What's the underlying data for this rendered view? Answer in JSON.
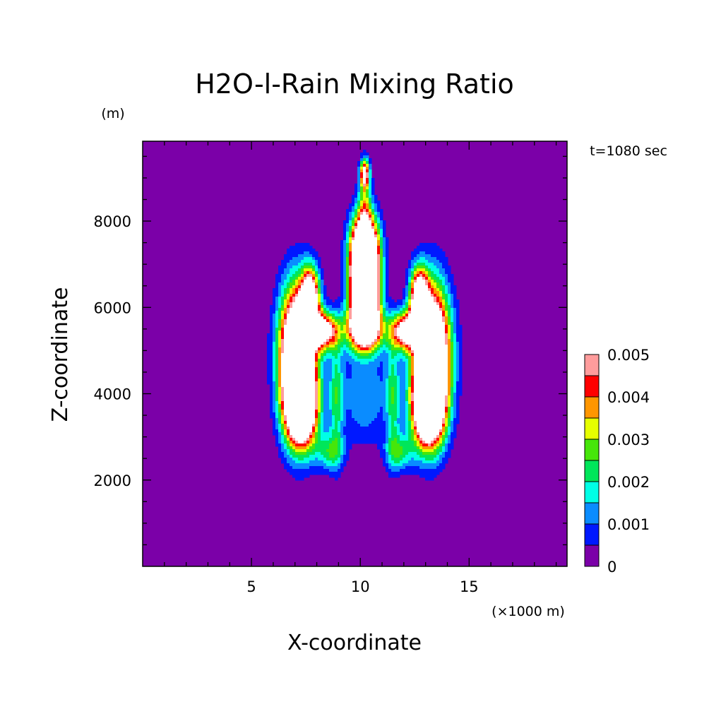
{
  "chart_data": {
    "type": "heatmap",
    "title": "H2O-l-Rain Mixing Ratio",
    "xlabel": "X-coordinate",
    "ylabel": "Z-coordinate",
    "x_unit": "(×1000 m)",
    "y_unit": "(m)",
    "time_label": "t=1080 sec",
    "xlim": [
      0,
      19.5
    ],
    "ylim": [
      0,
      9850
    ],
    "x_ticks": [
      5,
      10,
      15
    ],
    "y_ticks": [
      2000,
      4000,
      6000,
      8000
    ],
    "colorbar": {
      "levels": [
        0,
        0.0005,
        0.001,
        0.0015,
        0.002,
        0.0025,
        0.003,
        0.0035,
        0.004,
        0.0045,
        0.005
      ],
      "colors": [
        "#7b00a8",
        "#0018ff",
        "#0a8cff",
        "#00ffe6",
        "#00e65a",
        "#46e60a",
        "#e6ff00",
        "#ff9600",
        "#ff0000",
        "#ff9c9c",
        "#ffffff"
      ],
      "tick_labels": [
        "0",
        "0.001",
        "0.002",
        "0.003",
        "0.004",
        "0.005"
      ]
    }
  }
}
